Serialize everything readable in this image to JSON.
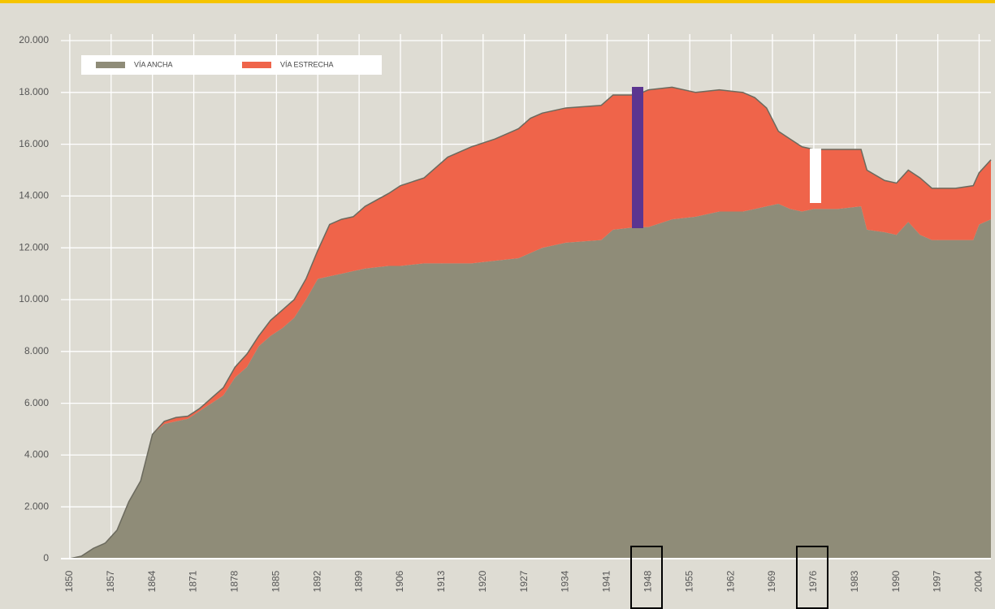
{
  "chart_data": {
    "type": "stacked-area",
    "x": [
      1850,
      1852,
      1854,
      1856,
      1858,
      1860,
      1862,
      1864,
      1866,
      1868,
      1870,
      1872,
      1874,
      1876,
      1878,
      1880,
      1882,
      1884,
      1886,
      1888,
      1890,
      1892,
      1894,
      1896,
      1898,
      1900,
      1904,
      1906,
      1910,
      1914,
      1918,
      1922,
      1926,
      1928,
      1930,
      1934,
      1940,
      1942,
      1946,
      1948,
      1952,
      1956,
      1960,
      1964,
      1966,
      1968,
      1970,
      1972,
      1974,
      1976,
      1980,
      1984,
      1985,
      1988,
      1990,
      1992,
      1994,
      1996,
      2000,
      2003,
      2004,
      2006
    ],
    "series": [
      {
        "name": "VÍA ANCHA",
        "color": "#8f8c78",
        "values": [
          0,
          100,
          400,
          600,
          1100,
          2200,
          3000,
          4800,
          5200,
          5300,
          5400,
          5700,
          6000,
          6300,
          7000,
          7400,
          8200,
          8600,
          8900,
          9300,
          10000,
          10800,
          10900,
          11000,
          11100,
          11200,
          11300,
          11300,
          11400,
          11400,
          11400,
          11500,
          11600,
          11800,
          12000,
          12200,
          12300,
          12700,
          12800,
          12800,
          13100,
          13200,
          13400,
          13400,
          13500,
          13600,
          13700,
          13500,
          13400,
          13500,
          13500,
          13600,
          12700,
          12600,
          12500,
          13000,
          12500,
          12300,
          12300,
          12300,
          12900,
          13100
        ]
      },
      {
        "name": "VÍA ESTRECHA",
        "color": "#ef644a",
        "values": [
          0,
          0,
          0,
          0,
          0,
          0,
          0,
          0,
          100,
          150,
          100,
          100,
          200,
          300,
          400,
          500,
          400,
          600,
          700,
          700,
          800,
          1100,
          2000,
          2100,
          2100,
          2400,
          2800,
          3100,
          3300,
          4100,
          4500,
          4700,
          5000,
          5200,
          5200,
          5200,
          5200,
          5200,
          5100,
          5300,
          5100,
          4800,
          4700,
          4600,
          4300,
          3800,
          2800,
          2700,
          2500,
          2300,
          2300,
          2200,
          2300,
          2000,
          2000,
          2000,
          2200,
          2000,
          2000,
          2100,
          2000,
          2300
        ]
      }
    ],
    "xlim": [
      1848.5,
      2006
    ],
    "xticks": [
      1850,
      1857,
      1864,
      1871,
      1878,
      1885,
      1892,
      1899,
      1906,
      1913,
      1920,
      1927,
      1934,
      1941,
      1948,
      1955,
      1962,
      1969,
      1976,
      1983,
      1990,
      1997,
      2004
    ],
    "ylim": [
      0,
      20000
    ],
    "yticks": [
      0,
      {
        "value": 2000,
        "label": "2.000"
      },
      {
        "value": 4000,
        "label": "4.000"
      },
      {
        "value": 6000,
        "label": "6.000"
      },
      {
        "value": 8000,
        "label": "8.000"
      },
      {
        "value": 10000,
        "label": "10.000"
      },
      {
        "value": 12000,
        "label": "12.000"
      },
      {
        "value": 14000,
        "label": "14.000"
      },
      {
        "value": 16000,
        "label": "16.000"
      },
      {
        "value": 18000,
        "label": "18.000"
      },
      {
        "value": 20000,
        "label": "20.000"
      }
    ],
    "grid": true
  }
}
